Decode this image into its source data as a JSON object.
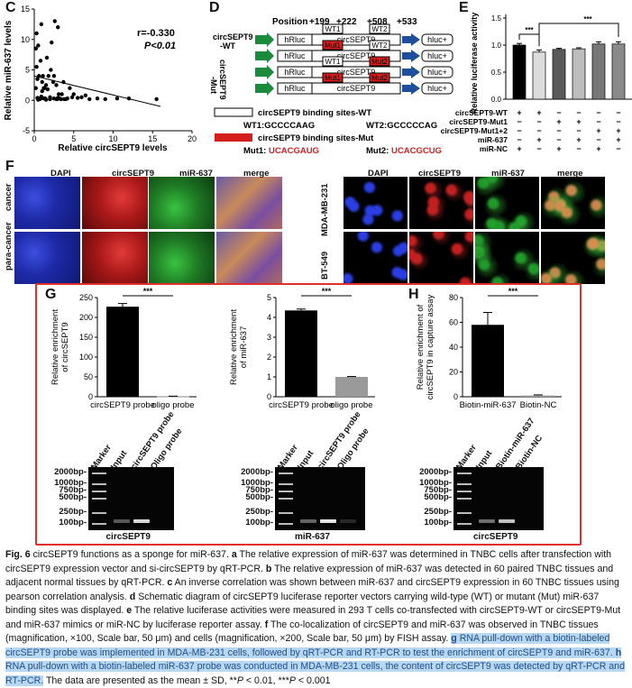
{
  "panels": {
    "C": "C",
    "D": "D",
    "E": "E",
    "F": "F",
    "G": "G",
    "H": "H"
  },
  "panel_c": {
    "stat_r": "r=-0.330",
    "stat_p": "P<0.01",
    "xlabel": "Relative circSEPT9 levels",
    "ylabel": "Relative miR-637 levels"
  },
  "panel_d": {
    "position_label": "Position",
    "positions": [
      "+199",
      "+222",
      "+508",
      "+533"
    ],
    "wt_label": "circSEPT9\n-WT",
    "mut_label": "circSEPT9\n-Mut",
    "hrluc": "hRluc",
    "circ": "circSEPT9",
    "hluc": "hluc+",
    "wt1": "WT1",
    "wt2": "WT2",
    "mut1": "Mut1",
    "mut2": "Mut2",
    "legend_wt": "circSEPT9 binding sites-WT",
    "legend_mut": "circSEPT9 binding sites-Mut",
    "wt1_seq_label": "WT1:GCCCCAAG",
    "wt2_seq_label": "WT2:GCCCCCAG",
    "mut1_seq_prefix": "Mut1:",
    "mut1_seq": "UCACGAUG",
    "mut2_seq_prefix": "Mut2:",
    "mut2_seq": "UCACGCUG"
  },
  "panel_e": {
    "ylabel": "Relative luciferase activity",
    "sig": "***",
    "row_labels": [
      "circSEPT9-WT",
      "circSEPT9-Mut1",
      "circSEPT9-Mut1+2",
      "miR-637",
      "miR-NC"
    ],
    "row_marks": [
      [
        "+",
        "+",
        "−",
        "−",
        "−",
        "−"
      ],
      [
        "−",
        "−",
        "+",
        "+",
        "−",
        "−"
      ],
      [
        "−",
        "−",
        "−",
        "−",
        "+",
        "+"
      ],
      [
        "−",
        "+",
        "−",
        "+",
        "−",
        "+"
      ],
      [
        "+",
        "−",
        "+",
        "−",
        "+",
        "−"
      ]
    ]
  },
  "panel_f": {
    "col_labels_left": [
      "DAPI",
      "circSEPT9",
      "miR-637",
      "merge"
    ],
    "col_labels_right": [
      "DAPI",
      "circSEPT9",
      "miR-637",
      "merge"
    ],
    "row_labels_left": [
      "cancer",
      "para-cancer"
    ],
    "row_labels_right": [
      "MDA-MB-231",
      "BT-549"
    ]
  },
  "panel_g1": {
    "ylabel": "Relative enrichment\nof circSEPT9",
    "sig": "***"
  },
  "panel_g2": {
    "ylabel": "Relative enrichment\nof miR-637",
    "sig": "***"
  },
  "panel_h": {
    "ylabel": "Relative enrichment of\ncircSEPT9 in capture assay",
    "sig": "***"
  },
  "gels": [
    {
      "lanes": [
        "Marker",
        "Input",
        "circSEPT9 probe",
        "Oligo probe"
      ],
      "markers": [
        "2000bp-",
        "1000bp-",
        "750bp-",
        "500bp-",
        "250bp-",
        "100bp-"
      ],
      "title": "circSEPT9"
    },
    {
      "lanes": [
        "Marker",
        "Input",
        "circSEPT9 probe",
        "Oligo probe"
      ],
      "markers": [
        "2000bp-",
        "1000bp-",
        "750bp-",
        "500bp-",
        "250bp-",
        "100bp-"
      ],
      "title": "miR-637"
    },
    {
      "lanes": [
        "Marker",
        "Input",
        "Biotin-miR-637",
        "Biotin-NC"
      ],
      "markers": [
        "2000bp-",
        "1000bp-",
        "750bp-",
        "500bp-",
        "250bp-",
        "100bp-"
      ],
      "title": "circSEPT9"
    }
  ],
  "caption": {
    "fig": "Fig. 6",
    "p1": " circSEPT9 functions as a sponge for miR-637. ",
    "a": "a",
    "p2": " The relative expression of miR-637 was determined in TNBC cells after transfection with circSEPT9 expression vector and si-circSEPT9 by qRT-PCR. ",
    "b": "b",
    "p3": " The relative expression of miR-637 was detected in 60 paired TNBC tissues and adjacent normal tissues by qRT-PCR. ",
    "c": "c",
    "p4": " An inverse correlation was shown between miR-637 and circSEPT9 expression in 60 TNBC tissues using pearson correlation analysis. ",
    "d": "d",
    "p5": " Schematic diagram of circSEPT9 luciferase reporter vectors carrying wild-type (WT) or mutant (Mut) miR-637 binding sites was displayed. ",
    "e": "e",
    "p6": " The relative luciferase activities were measured in 293 T cells co-transfected with circSEPT9-WT or circSEPT9-Mut and miR-637 mimics or miR-NC by luciferase reporter assay. ",
    "f": "f",
    "p7": " The co-localization of circSEPT9 and miR-637 was observed in TNBC tissues (magnification, ×100, Scale bar, 50 μm) and cells (magnification, ×200, Scale bar, 50 μm) by FISH assay. ",
    "g": "g",
    "p8": " RNA pull-down with a biotin-labeled circSEPT9 probe was implemented in MDA-MB-231 cells, followed by qRT-PCR and RT-PCR to test the enrichment of circSEPT9 and miR-637. ",
    "h": "h",
    "p9": " RNA pull-down with a biotin-labeled miR-637 probe was conducted in MDA-MB-231 cells, the content of circSEPT9 was detected by qRT-PCR and RT-PCR.",
    "p10": " The data are presented as the mean ± SD, **",
    "p11": "P",
    "p12": " < 0.01, ***",
    "p13": "P",
    "p14": " < 0.001"
  },
  "chart_data": [
    {
      "type": "scatter",
      "xlabel": "Relative circSEPT9 levels",
      "ylabel": "Relative miR-637 levels",
      "xlim": [
        0,
        20
      ],
      "ylim": [
        -5,
        15
      ],
      "xticks": [
        0,
        5,
        10,
        15,
        20
      ],
      "yticks": [
        -5,
        0,
        5,
        10,
        15
      ],
      "x": [
        0.2,
        0.3,
        0.4,
        0.5,
        0.6,
        0.7,
        0.8,
        0.9,
        1.0,
        1.1,
        1.2,
        1.3,
        1.5,
        1.6,
        1.8,
        2.0,
        2.2,
        2.4,
        2.6,
        2.8,
        3.0,
        3.2,
        3.5,
        3.8,
        4.0,
        4.5,
        5.0,
        6.0,
        7.0,
        8.0,
        9.0,
        12.0,
        0.5,
        1.0,
        1.5,
        2.0,
        2.5,
        3.0,
        0.3,
        0.8,
        1.2,
        2.8,
        3.4,
        4.2,
        5.5,
        6.5,
        0.6,
        1.4,
        2.1,
        3.7,
        0.4,
        0.9,
        2.5,
        3.1,
        4.8,
        0.2,
        1.7,
        2.9,
        10.5,
        15.5
      ],
      "y": [
        8.5,
        11.0,
        3.5,
        9.0,
        4.0,
        0.2,
        6.5,
        12.5,
        3.0,
        4.0,
        0.3,
        2.0,
        0.1,
        7.0,
        4.0,
        0.5,
        9.5,
        3.0,
        13.0,
        0.2,
        12.0,
        0.3,
        1.0,
        0.2,
        0.2,
        2.0,
        1.0,
        0.5,
        0.2,
        0.3,
        0.2,
        0.3,
        0.1,
        1.5,
        2.5,
        0.2,
        4.0,
        0.4,
        5.5,
        0.3,
        2.0,
        2.5,
        0.2,
        0.3,
        0.4,
        0.8,
        0.2,
        0.3,
        5.0,
        3.0,
        0.4,
        0.6,
        0.3,
        1.0,
        0.5,
        2.0,
        1.8,
        0.2,
        0.3,
        0.2
      ],
      "fit_line": {
        "x": [
          0,
          16
        ],
        "y": [
          4.0,
          -1.0
        ]
      }
    },
    {
      "type": "bar",
      "ylabel": "Relative luciferase activity",
      "ylim": [
        0,
        1.5
      ],
      "yticks": [
        0.0,
        0.5,
        1.0,
        1.5
      ],
      "values": [
        1.0,
        0.87,
        0.92,
        0.93,
        1.02,
        1.02
      ],
      "errors": [
        0.03,
        0.04,
        0.02,
        0.02,
        0.04,
        0.04
      ],
      "colors": [
        "#000000",
        "#dcdcdc",
        "#5a5a5a",
        "#bdbdbd",
        "#777777",
        "#8a8a8a"
      ]
    },
    {
      "type": "bar",
      "ylabel": "Relative enrichment of circSEPT9",
      "categories": [
        "circSEPT9 probe",
        "oligo probe"
      ],
      "values": [
        227,
        1
      ],
      "errors": [
        8,
        0.5
      ],
      "ylim": [
        0,
        250
      ],
      "yticks": [
        0,
        50,
        100,
        150,
        200,
        250
      ],
      "colors": [
        "#000000",
        "#9a9a9a"
      ]
    },
    {
      "type": "bar",
      "ylabel": "Relative enrichment of miR-637",
      "categories": [
        "circSEPT9 probe",
        "oligo probe"
      ],
      "values": [
        4.35,
        1.0
      ],
      "errors": [
        0.07,
        0.02
      ],
      "ylim": [
        0,
        5
      ],
      "yticks": [
        0,
        1,
        2,
        3,
        4,
        5
      ],
      "colors": [
        "#000000",
        "#9a9a9a"
      ]
    },
    {
      "type": "bar",
      "ylabel": "Relative enrichment of circSEPT9 in capture assay",
      "categories": [
        "Biotin-miR-637",
        "Biotin-NC"
      ],
      "values": [
        58,
        1
      ],
      "errors": [
        10,
        0.5
      ],
      "ylim": [
        0,
        80
      ],
      "yticks": [
        0,
        20,
        40,
        60,
        80
      ],
      "colors": [
        "#000000",
        "#9a9a9a"
      ]
    }
  ]
}
